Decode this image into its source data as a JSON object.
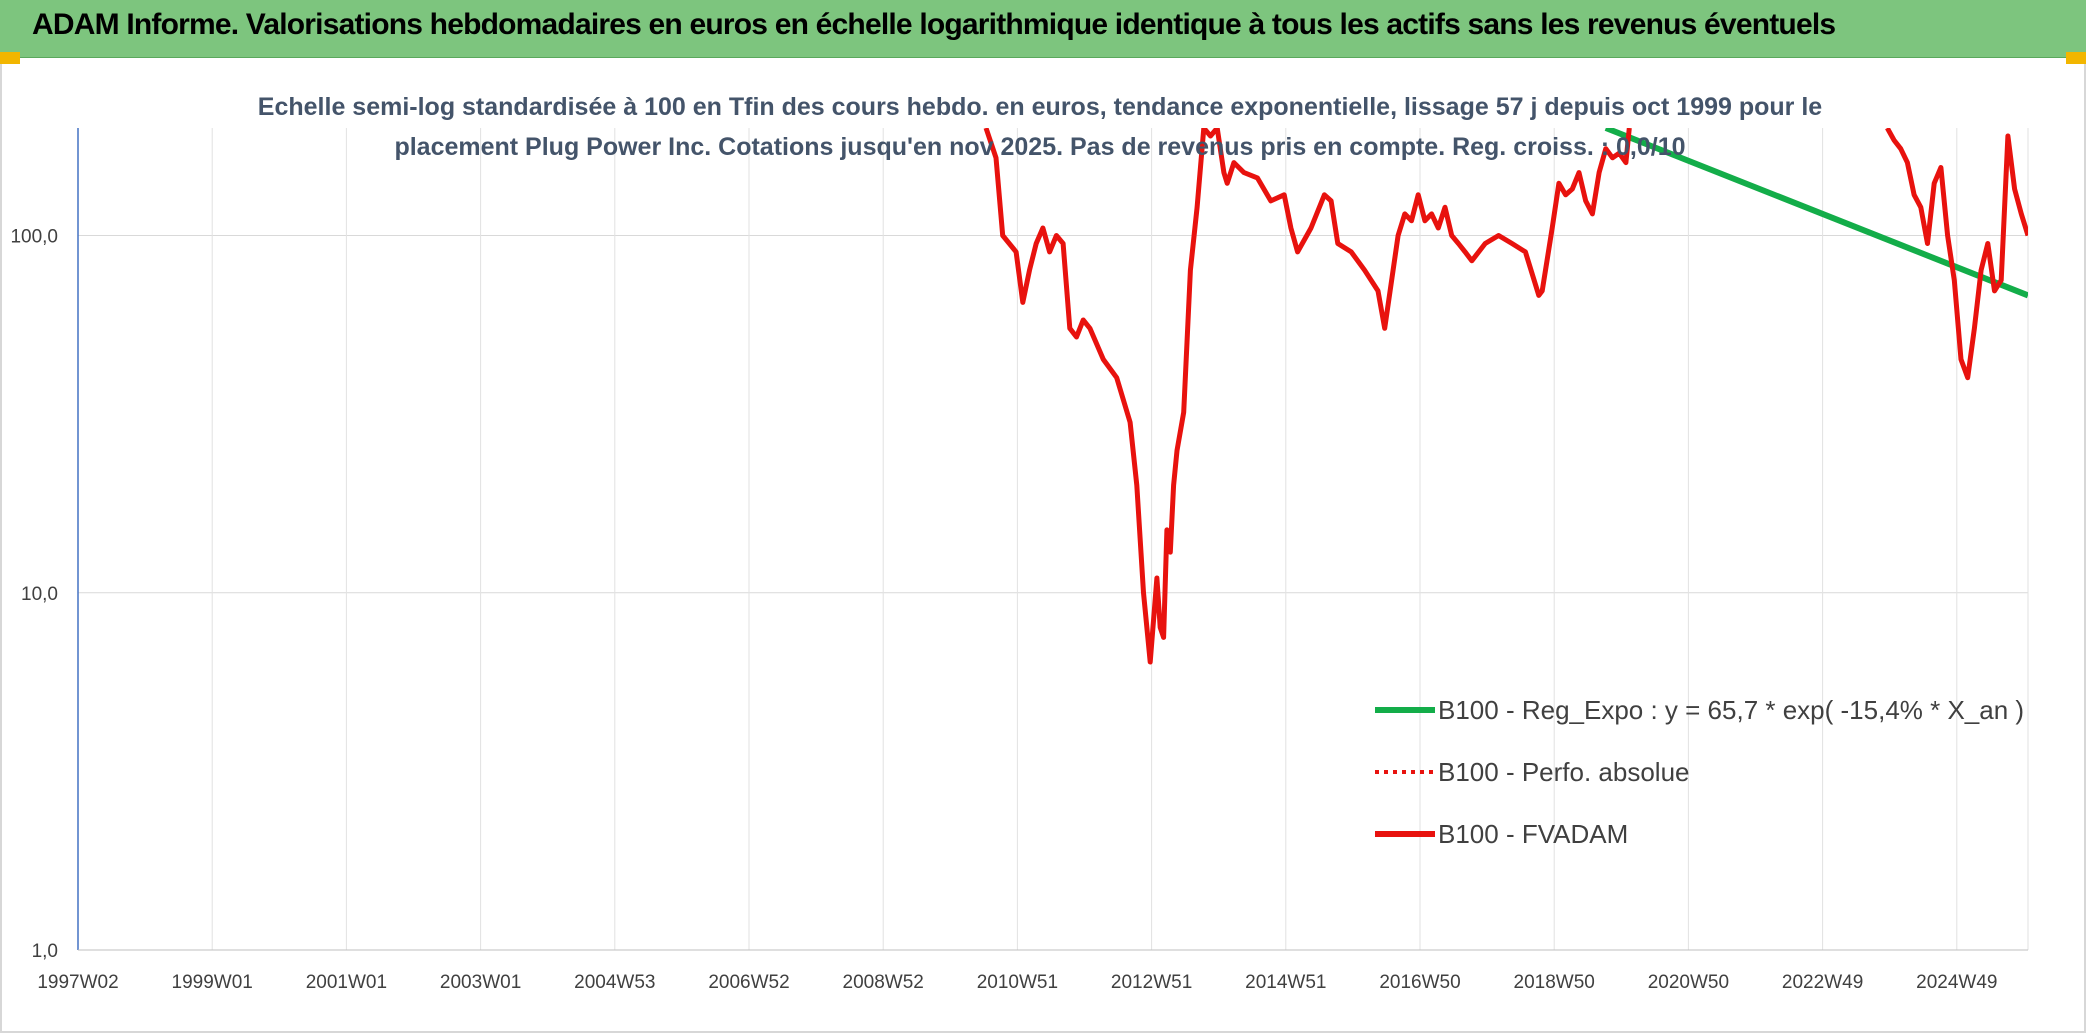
{
  "header": {
    "title": "ADAM Informe. Valorisations hebdomadaires en euros en échelle logarithmique identique à tous les actifs sans les revenus éventuels"
  },
  "colors": {
    "banner": "#7dc57e",
    "accent_corner": "#f2b600",
    "fvadam": "#e8120e",
    "regression": "#13ad49",
    "grid": "#d9d9d9",
    "axis": "#4472c4"
  },
  "chart_data": {
    "type": "line",
    "title_line1": "Echelle semi-log standardisée à 100 en Tfin des cours hebdo. en euros, tendance exponentielle, lissage 57 j depuis oct 1999 pour le",
    "title_line2": "placement Plug Power Inc. Cotations jusqu'en nov 2025. Pas de revenus pris en compte. Reg. croiss. : 0,0/10",
    "y_scale": "log",
    "ylim": [
      1,
      200
    ],
    "y_ticks": [
      "1,0",
      "10,0",
      "100,0"
    ],
    "x_tick_labels": [
      "1997W02",
      "1999W01",
      "2001W01",
      "2003W01",
      "2004W53",
      "2006W52",
      "2008W52",
      "2010W51",
      "2012W51",
      "2014W51",
      "2016W50",
      "2018W50",
      "2020W50",
      "2022W49",
      "2024W49"
    ],
    "xlim": [
      1997.0,
      2026.1
    ],
    "grid": "vertical and horizontal",
    "legend_position": "bottom-right",
    "series": [
      {
        "name": "B100 - Reg_Expo : y = 65,7 * exp( -15,4% *  X_an )",
        "style": "solid-green",
        "x": [
          2019.8,
          2026.1
        ],
        "y": [
          200,
          68
        ]
      },
      {
        "name": "B100 - Perfo. absolue",
        "style": "dotted-red",
        "x": [],
        "y": []
      },
      {
        "name": "B100 - FVADAM",
        "style": "solid-red",
        "x": [
          2010.55,
          2010.7,
          2010.8,
          2011.0,
          2011.1,
          2011.2,
          2011.3,
          2011.4,
          2011.5,
          2011.6,
          2011.7,
          2011.8,
          2011.9,
          2012.0,
          2012.1,
          2012.3,
          2012.5,
          2012.7,
          2012.8,
          2012.9,
          2013.0,
          2013.1,
          2013.15,
          2013.2,
          2013.25,
          2013.3,
          2013.35,
          2013.4,
          2013.5,
          2013.6,
          2013.7,
          2013.8,
          2013.9,
          2014.0,
          2014.1,
          2014.15,
          2014.25,
          2014.4,
          2014.6,
          2014.8,
          2015.0,
          2015.1,
          2015.2,
          2015.4,
          2015.6,
          2015.7,
          2015.8,
          2016.0,
          2016.2,
          2016.4,
          2016.5,
          2016.7,
          2016.8,
          2016.9,
          2017.0,
          2017.1,
          2017.2,
          2017.3,
          2017.4,
          2017.5,
          2017.6,
          2017.7,
          2017.8,
          2018.0,
          2018.2,
          2018.4,
          2018.6,
          2018.8,
          2018.85,
          2018.9,
          2019.0,
          2019.1,
          2019.2,
          2019.3,
          2019.4,
          2019.5,
          2019.6,
          2019.7,
          2019.8,
          2019.9,
          2020.0,
          2020.1,
          2020.15,
          2024.0,
          2024.1,
          2024.2,
          2024.3,
          2024.4,
          2024.5,
          2024.6,
          2024.7,
          2024.8,
          2024.9,
          2025.0,
          2025.1,
          2025.2,
          2025.3,
          2025.4,
          2025.5,
          2025.6,
          2025.7,
          2025.8,
          2025.9,
          2026.0,
          2026.1
        ],
        "y": [
          200,
          165,
          100,
          90,
          65,
          80,
          95,
          105,
          90,
          100,
          95,
          55,
          52,
          58,
          55,
          45,
          40,
          30,
          20,
          10,
          6.4,
          11,
          8,
          7.5,
          15,
          13,
          20,
          25,
          32,
          80,
          120,
          200,
          190,
          200,
          150,
          140,
          160,
          150,
          145,
          125,
          130,
          105,
          90,
          105,
          130,
          125,
          95,
          90,
          80,
          70,
          55,
          100,
          115,
          110,
          130,
          110,
          115,
          105,
          120,
          100,
          95,
          90,
          85,
          95,
          100,
          95,
          90,
          68,
          70,
          80,
          105,
          140,
          130,
          135,
          150,
          125,
          115,
          150,
          175,
          165,
          170,
          160,
          200,
          200,
          185,
          175,
          160,
          130,
          120,
          95,
          140,
          155,
          100,
          75,
          45,
          40,
          55,
          80,
          95,
          70,
          75,
          190,
          135,
          115,
          100
        ]
      }
    ]
  }
}
